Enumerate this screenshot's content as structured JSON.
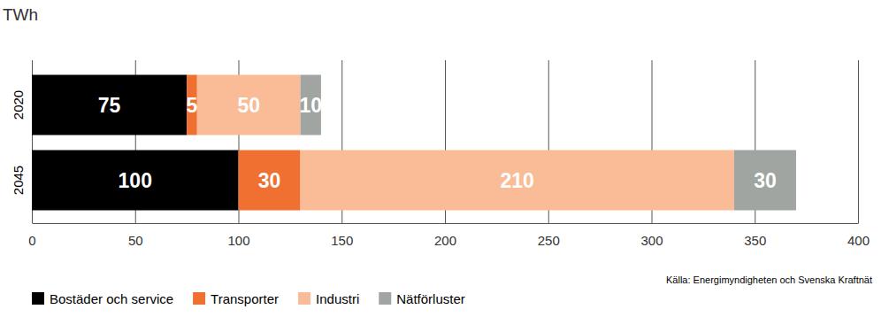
{
  "chart_data": {
    "type": "bar",
    "title": "TWh",
    "source": "Källa: Energimyndigheten och Svenska Kraftnät",
    "orientation": "horizontal",
    "stacked": true,
    "data_labels": true,
    "grid": true,
    "legend": "bottom left",
    "categories": [
      "2020",
      "2045"
    ],
    "series": [
      {
        "name": "Bostäder och service",
        "color": "#000000",
        "values": [
          75,
          100
        ]
      },
      {
        "name": "Transporter",
        "color": "#f07032",
        "values": [
          5,
          30
        ]
      },
      {
        "name": "Industri",
        "color": "#f9bc96",
        "values": [
          50,
          210
        ]
      },
      {
        "name": "Nätförluster",
        "color": "#a0a5a1",
        "values": [
          10,
          30
        ]
      }
    ],
    "xlim": [
      0,
      400
    ],
    "xticks": [
      0,
      50,
      100,
      150,
      200,
      250,
      300,
      350,
      400
    ]
  }
}
